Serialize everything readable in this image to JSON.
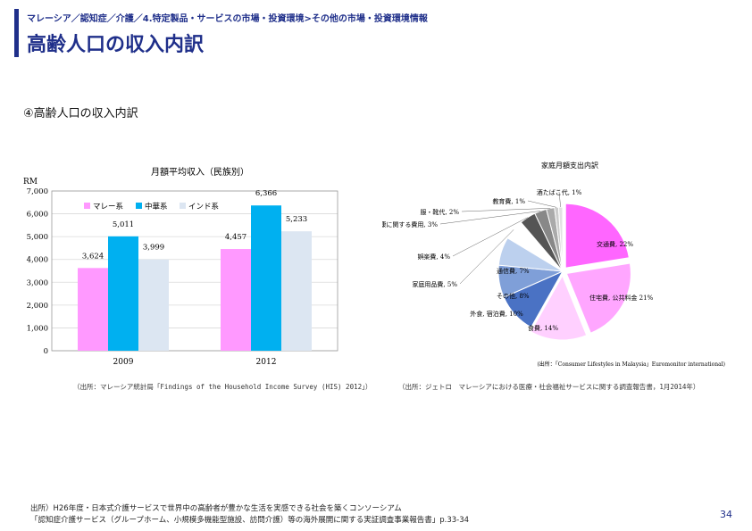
{
  "header": {
    "breadcrumb": "マレーシア／認知症／介護／4.特定製品・サービスの市場・投資環境>その他の市場・投資環境情報",
    "title": "高齢人口の収入内訳",
    "accent_color": "#1f2f8a"
  },
  "section_heading": "④高齢人口の収入内訳",
  "chart_data": [
    {
      "type": "bar",
      "title": "月額平均収入（民族別）",
      "ylabel": "RM",
      "categories": [
        "2009",
        "2012"
      ],
      "ylim": [
        0,
        7000
      ],
      "yticks": [
        "0",
        "1,000",
        "2,000",
        "3,000",
        "4,000",
        "5,000",
        "6,000",
        "7,000"
      ],
      "grid": true,
      "legend_position": "top",
      "series": [
        {
          "name": "マレー系",
          "color": "#ff99ff",
          "values": [
            3624,
            4457
          ],
          "labels": [
            "3,624",
            "4,457"
          ]
        },
        {
          "name": "中華系",
          "color": "#00b0f0",
          "values": [
            5011,
            6366
          ],
          "labels": [
            "5,011",
            "6,366"
          ]
        },
        {
          "name": "インド系",
          "color": "#dce6f2",
          "values": [
            3999,
            5233
          ],
          "labels": [
            "3,999",
            "5,233"
          ]
        }
      ],
      "source": "（出所：マレーシア統計局「Findings of the Household Income Survey (HIS) 2012」）"
    },
    {
      "type": "pie",
      "title": "家庭月額支出内訳",
      "slices": [
        {
          "label": "交通費, 22%",
          "value": 22,
          "color": "#ff66ff"
        },
        {
          "label": "住宅費, 公共料金 21%",
          "value": 21,
          "color": "#ffa6ff"
        },
        {
          "label": "食費, 14%",
          "value": 14,
          "color": "#ffd0ff"
        },
        {
          "label": "外食, 宿泊費, 10%",
          "value": 10,
          "color": "#4a72c4"
        },
        {
          "label": "その他, 8%",
          "value": 8,
          "color": "#7f9fd8"
        },
        {
          "label": "通信費, 7%",
          "value": 7,
          "color": "#bcd0ee"
        },
        {
          "label": "家庭用品費, 5%",
          "value": 5,
          "color": "#ffffff"
        },
        {
          "label": "娯楽費, 4%",
          "value": 4,
          "color": "#555555"
        },
        {
          "label": "健康に関する費用, 3%",
          "value": 3,
          "color": "#888888"
        },
        {
          "label": "服・靴代, 2%",
          "value": 2,
          "color": "#aaaaaa"
        },
        {
          "label": "教育費, 1%",
          "value": 1,
          "color": "#cccccc"
        },
        {
          "label": "酒たばこ代, 1%",
          "value": 1,
          "color": "#e2e2e2"
        }
      ],
      "source_inner": "(出所：「Consumer Lifestyles in Malaysia」Euromonitor international)",
      "source": "（出所：ジェトロ　マレーシアにおける医療・社会福祉サービスに関する調査報告書，1月2014年）"
    }
  ],
  "footer": {
    "line1": "出所）H26年度・日本式介護サービスで世界中の高齢者が豊かな生活を実感できる社会を築くコンソーシアム",
    "line2": "「認知症介護サービス（グループホーム、小規模多機能型施設、訪問介護）等の海外展開に関する実証調査事業報告書」p.33-34",
    "page_number": "34"
  }
}
